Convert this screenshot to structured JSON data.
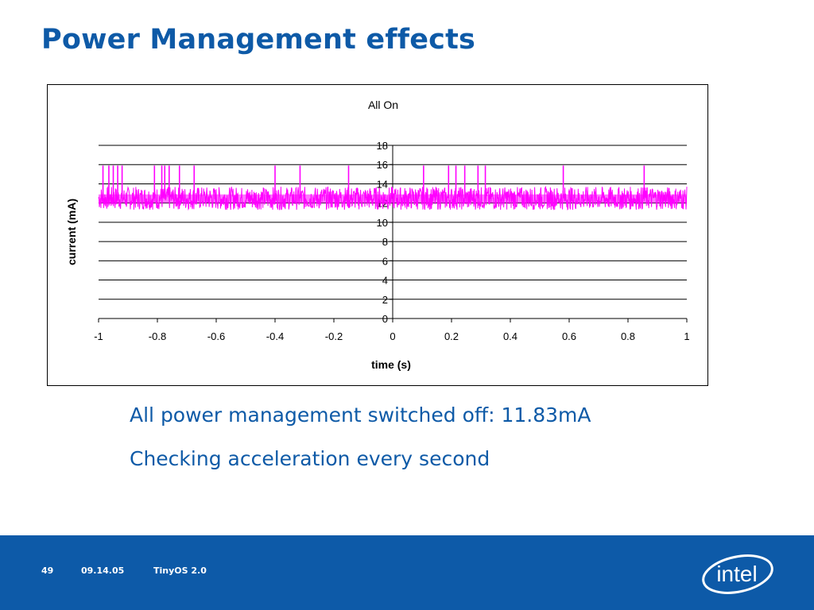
{
  "slide": {
    "title": "Power Management effects",
    "bullets": [
      "All power management switched off: 11.83mA",
      "Checking acceleration every second"
    ],
    "footer": {
      "page_number": "49",
      "date": "09.14.05",
      "course": "TinyOS 2.0"
    },
    "logo_text": "intel"
  },
  "colors": {
    "title": "#0e5aa7",
    "footer_bg": "#0d5aa8",
    "series": "#ff00ff"
  },
  "chart_data": {
    "type": "line",
    "title": "All On",
    "xlabel": "time (s)",
    "ylabel": "current (mA)",
    "xlim": [
      -1,
      1
    ],
    "ylim": [
      0,
      18
    ],
    "x_ticks": [
      "-1",
      "-0.8",
      "-0.6",
      "-0.4",
      "-0.2",
      "0",
      "0.2",
      "0.4",
      "0.6",
      "0.8",
      "1"
    ],
    "y_ticks": [
      "0",
      "2",
      "4",
      "6",
      "8",
      "10",
      "12",
      "14",
      "16",
      "18"
    ],
    "grid": "horizontal",
    "legend": "none",
    "series": [
      {
        "baseline_mA": 12.5,
        "noise_low_mA": 11.3,
        "noise_high_mA": 13.7,
        "spike_peak_mA": 15.9,
        "spike_times_s": [
          -0.985,
          -0.965,
          -0.95,
          -0.935,
          -0.92,
          -0.81,
          -0.785,
          -0.775,
          -0.76,
          -0.725,
          -0.675,
          -0.4,
          -0.315,
          -0.15,
          0.105,
          0.19,
          0.215,
          0.245,
          0.29,
          0.315,
          0.58,
          0.855
        ]
      }
    ]
  }
}
